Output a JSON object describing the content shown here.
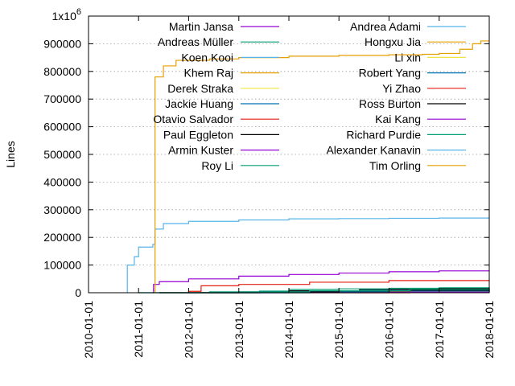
{
  "chart_data": {
    "type": "line",
    "title": "",
    "xlabel": "",
    "ylabel": "Lines",
    "xlim": [
      "2010-01-01",
      "2018-01-01"
    ],
    "ylim": [
      0,
      1000000
    ],
    "y_top_label": "1x10",
    "y_top_exponent": "6",
    "x_ticks": [
      "2010-01-01",
      "2011-01-01",
      "2012-01-01",
      "2013-01-01",
      "2014-01-01",
      "2015-01-01",
      "2016-01-01",
      "2017-01-01",
      "2018-01-01"
    ],
    "y_ticks": [
      0,
      100000,
      200000,
      300000,
      400000,
      500000,
      600000,
      700000,
      800000,
      900000
    ],
    "grid": "horizontal",
    "legend_position": "top",
    "series": [
      {
        "name": "Martin Jansa",
        "color": "#9400d3",
        "points": [
          [
            "2011-04-10",
            0
          ],
          [
            "2011-04-20",
            30000
          ],
          [
            "2011-06-01",
            40000
          ],
          [
            "2012-01-01",
            50000
          ],
          [
            "2013-01-01",
            60000
          ],
          [
            "2014-01-01",
            66000
          ],
          [
            "2015-01-01",
            71000
          ],
          [
            "2016-01-01",
            76000
          ],
          [
            "2017-01-01",
            79000
          ],
          [
            "2018-01-01",
            82000
          ]
        ]
      },
      {
        "name": "Andreas Müller",
        "color": "#009e73",
        "points": [
          [
            "2011-06-01",
            0
          ],
          [
            "2013-01-01",
            2000
          ],
          [
            "2015-01-01",
            5000
          ],
          [
            "2016-06-01",
            8000
          ],
          [
            "2017-06-01",
            10000
          ],
          [
            "2018-01-01",
            12000
          ]
        ]
      },
      {
        "name": "Koen Kooi",
        "color": "#56b4e9",
        "points": [
          [
            "2011-01-01",
            0
          ],
          [
            "2012-06-01",
            3000
          ],
          [
            "2014-01-01",
            6000
          ],
          [
            "2016-01-01",
            8000
          ],
          [
            "2018-01-01",
            9000
          ]
        ]
      },
      {
        "name": "Khem Raj",
        "color": "#e69f00",
        "points": [
          [
            "2011-06-01",
            0
          ],
          [
            "2013-01-01",
            2000
          ],
          [
            "2015-01-01",
            4000
          ],
          [
            "2016-06-01",
            6000
          ],
          [
            "2018-01-01",
            8000
          ]
        ]
      },
      {
        "name": "Derek Straka",
        "color": "#f0e442",
        "points": [
          [
            "2015-06-01",
            0
          ],
          [
            "2016-06-01",
            1500
          ],
          [
            "2017-06-01",
            3000
          ],
          [
            "2018-01-01",
            4000
          ]
        ]
      },
      {
        "name": "Jackie Huang",
        "color": "#0072b2",
        "points": [
          [
            "2013-06-01",
            0
          ],
          [
            "2014-06-01",
            4000
          ],
          [
            "2015-06-01",
            8000
          ],
          [
            "2016-06-01",
            11000
          ],
          [
            "2018-01-01",
            14000
          ]
        ]
      },
      {
        "name": "Otavio Salvador",
        "color": "#e51e10",
        "points": [
          [
            "2011-06-01",
            0
          ],
          [
            "2012-01-01",
            5000
          ],
          [
            "2012-04-01",
            25000
          ],
          [
            "2013-01-01",
            30000
          ],
          [
            "2014-06-01",
            38000
          ],
          [
            "2016-01-01",
            44000
          ],
          [
            "2018-01-01",
            47000
          ]
        ]
      },
      {
        "name": "Paul Eggleton",
        "color": "#000000",
        "points": [
          [
            "2011-06-01",
            0
          ],
          [
            "2013-01-01",
            3000
          ],
          [
            "2014-01-01",
            7000
          ],
          [
            "2015-06-01",
            12000
          ],
          [
            "2016-06-01",
            15000
          ],
          [
            "2018-01-01",
            18000
          ]
        ]
      },
      {
        "name": "Armin Kuster",
        "color": "#9400d3",
        "points": [
          [
            "2012-06-01",
            0
          ],
          [
            "2014-01-01",
            3000
          ],
          [
            "2016-01-01",
            6000
          ],
          [
            "2018-01-01",
            8000
          ]
        ]
      },
      {
        "name": "Roy Li",
        "color": "#009e73",
        "points": [
          [
            "2012-06-01",
            0
          ],
          [
            "2013-06-01",
            6000
          ],
          [
            "2014-01-01",
            12000
          ],
          [
            "2015-01-01",
            14000
          ],
          [
            "2016-01-01",
            16000
          ],
          [
            "2017-01-01",
            18000
          ],
          [
            "2018-01-01",
            20000
          ]
        ]
      },
      {
        "name": "Andrea Adami",
        "color": "#56b4e9",
        "points": [
          [
            "2011-06-01",
            0
          ],
          [
            "2013-01-01",
            2000
          ],
          [
            "2015-01-01",
            4000
          ],
          [
            "2018-01-01",
            6000
          ]
        ]
      },
      {
        "name": "Hongxu Jia",
        "color": "#e69f00",
        "points": [
          [
            "2014-01-01",
            0
          ],
          [
            "2015-06-01",
            3000
          ],
          [
            "2016-06-01",
            6000
          ],
          [
            "2017-06-01",
            9000
          ],
          [
            "2018-01-01",
            11000
          ]
        ]
      },
      {
        "name": "Li xin",
        "color": "#f0e442",
        "points": [
          [
            "2015-01-01",
            0
          ],
          [
            "2016-01-01",
            2000
          ],
          [
            "2017-01-01",
            3000
          ],
          [
            "2018-01-01",
            4000
          ]
        ]
      },
      {
        "name": "Robert Yang",
        "color": "#0072b2",
        "points": [
          [
            "2013-01-01",
            0
          ],
          [
            "2014-06-01",
            3000
          ],
          [
            "2016-01-01",
            6000
          ],
          [
            "2018-01-01",
            9000
          ]
        ]
      },
      {
        "name": "Yi Zhao",
        "color": "#e51e10",
        "points": [
          [
            "2015-06-01",
            0
          ],
          [
            "2016-06-01",
            2000
          ],
          [
            "2018-01-01",
            4000
          ]
        ]
      },
      {
        "name": "Ross Burton",
        "color": "#000000",
        "points": [
          [
            "2012-01-01",
            0
          ],
          [
            "2013-06-01",
            3000
          ],
          [
            "2015-01-01",
            6000
          ],
          [
            "2016-06-01",
            9000
          ],
          [
            "2018-01-01",
            12000
          ]
        ]
      },
      {
        "name": "Kai Kang",
        "color": "#9400d3",
        "points": [
          [
            "2014-06-01",
            0
          ],
          [
            "2016-01-01",
            2000
          ],
          [
            "2018-01-01",
            4000
          ]
        ]
      },
      {
        "name": "Richard Purdie",
        "color": "#009e73",
        "points": [
          [
            "2011-01-01",
            0
          ],
          [
            "2012-06-01",
            3000
          ],
          [
            "2014-06-01",
            7000
          ],
          [
            "2016-06-01",
            12000
          ],
          [
            "2018-01-01",
            16000
          ]
        ]
      },
      {
        "name": "Alexander Kanavin",
        "color": "#56b4e9",
        "points": [
          [
            "2010-10-10",
            0
          ],
          [
            "2010-10-11",
            100000
          ],
          [
            "2010-12-01",
            130000
          ],
          [
            "2011-01-01",
            165000
          ],
          [
            "2011-04-15",
            175000
          ],
          [
            "2011-05-01",
            230000
          ],
          [
            "2011-07-01",
            250000
          ],
          [
            "2012-01-01",
            258000
          ],
          [
            "2013-01-01",
            263000
          ],
          [
            "2014-01-01",
            267000
          ],
          [
            "2015-01-01",
            268000
          ],
          [
            "2016-01-01",
            269000
          ],
          [
            "2017-01-01",
            270000
          ],
          [
            "2018-01-01",
            272000
          ]
        ]
      },
      {
        "name": "Tim Orling",
        "color": "#e69f00",
        "points": [
          [
            "2011-04-15",
            0
          ],
          [
            "2011-05-01",
            780000
          ],
          [
            "2011-07-01",
            820000
          ],
          [
            "2011-10-01",
            840000
          ],
          [
            "2012-06-01",
            845000
          ],
          [
            "2013-01-01",
            850000
          ],
          [
            "2014-01-01",
            855000
          ],
          [
            "2015-01-01",
            858000
          ],
          [
            "2016-01-01",
            860000
          ],
          [
            "2016-09-01",
            862000
          ],
          [
            "2017-01-01",
            865000
          ],
          [
            "2017-06-01",
            880000
          ],
          [
            "2017-09-01",
            900000
          ],
          [
            "2017-11-01",
            910000
          ],
          [
            "2018-01-01",
            912000
          ]
        ]
      }
    ]
  }
}
